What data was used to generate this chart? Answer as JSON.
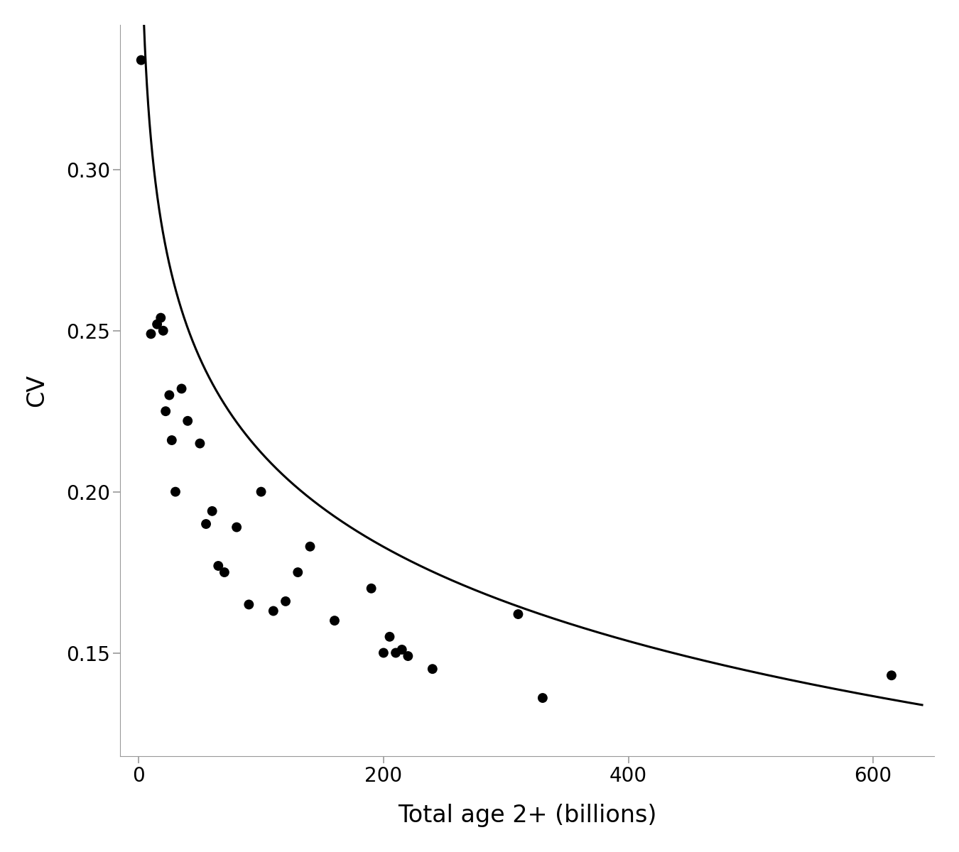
{
  "points_x": [
    2,
    10,
    15,
    18,
    20,
    22,
    25,
    27,
    30,
    35,
    40,
    50,
    55,
    60,
    65,
    70,
    80,
    90,
    100,
    110,
    120,
    130,
    140,
    160,
    190,
    200,
    205,
    210,
    215,
    220,
    240,
    310,
    330,
    615
  ],
  "points_y": [
    0.334,
    0.249,
    0.252,
    0.254,
    0.25,
    0.225,
    0.23,
    0.216,
    0.2,
    0.232,
    0.222,
    0.215,
    0.19,
    0.194,
    0.177,
    0.175,
    0.189,
    0.165,
    0.2,
    0.163,
    0.166,
    0.175,
    0.183,
    0.16,
    0.17,
    0.15,
    0.155,
    0.15,
    0.151,
    0.149,
    0.145,
    0.162,
    0.136,
    0.143
  ],
  "fit_a": 0.4065,
  "fit_b": -0.0422,
  "xlim": [
    -15,
    650
  ],
  "ylim": [
    0.118,
    0.345
  ],
  "xlabel": "Total age 2+ (billions)",
  "ylabel": "CV",
  "xticks": [
    0,
    200,
    400,
    600
  ],
  "yticks": [
    0.15,
    0.2,
    0.25,
    0.3
  ],
  "point_color": "#000000",
  "line_color": "#000000",
  "point_size": 100,
  "line_width": 2.2,
  "background_color": "#ffffff",
  "axis_color": "#999999",
  "xlabel_fontsize": 24,
  "ylabel_fontsize": 24,
  "tick_fontsize": 20
}
